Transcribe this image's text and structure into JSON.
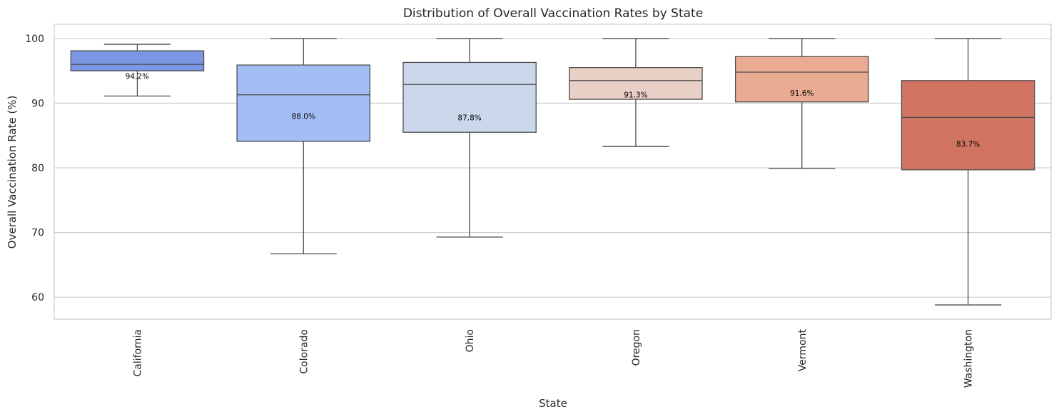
{
  "chart_data": {
    "type": "box",
    "title": "Distribution of Overall Vaccination Rates by State",
    "xlabel": "State",
    "ylabel": "Overall Vaccination Rate (%)",
    "ylim": [
      56.6,
      102.2
    ],
    "yticks": [
      60,
      70,
      80,
      90,
      100
    ],
    "grid": "horizontal",
    "categories": [
      "California",
      "Colorado",
      "Ohio",
      "Oregon",
      "Vermont",
      "Washington"
    ],
    "boxes": [
      {
        "category": "California",
        "whisker_low": 91.1,
        "q1": 95.0,
        "median": 96.0,
        "q3": 98.1,
        "whisker_high": 99.1,
        "mean_label": "94.2%",
        "mean": 94.2,
        "color": "#7b96e5"
      },
      {
        "category": "Colorado",
        "whisker_low": 66.7,
        "q1": 84.1,
        "median": 91.3,
        "q3": 95.9,
        "whisker_high": 100,
        "mean_label": "88.0%",
        "mean": 88.0,
        "color": "#a3bef4"
      },
      {
        "category": "Ohio",
        "whisker_low": 69.3,
        "q1": 85.5,
        "median": 92.9,
        "q3": 96.3,
        "whisker_high": 100,
        "mean_label": "87.8%",
        "mean": 87.8,
        "color": "#cbd8ec"
      },
      {
        "category": "Oregon",
        "whisker_low": 83.3,
        "q1": 90.6,
        "median": 93.5,
        "q3": 95.5,
        "whisker_high": 100,
        "mean_label": "91.3%",
        "mean": 91.3,
        "color": "#e9d0c6"
      },
      {
        "category": "Vermont",
        "whisker_low": 79.9,
        "q1": 90.2,
        "median": 94.8,
        "q3": 97.2,
        "whisker_high": 100,
        "mean_label": "91.6%",
        "mean": 91.6,
        "color": "#eaab93"
      },
      {
        "category": "Washington",
        "whisker_low": 58.8,
        "q1": 79.7,
        "median": 87.8,
        "q3": 93.5,
        "whisker_high": 100,
        "mean_label": "83.7%",
        "mean": 83.7,
        "color": "#d27462"
      }
    ]
  }
}
